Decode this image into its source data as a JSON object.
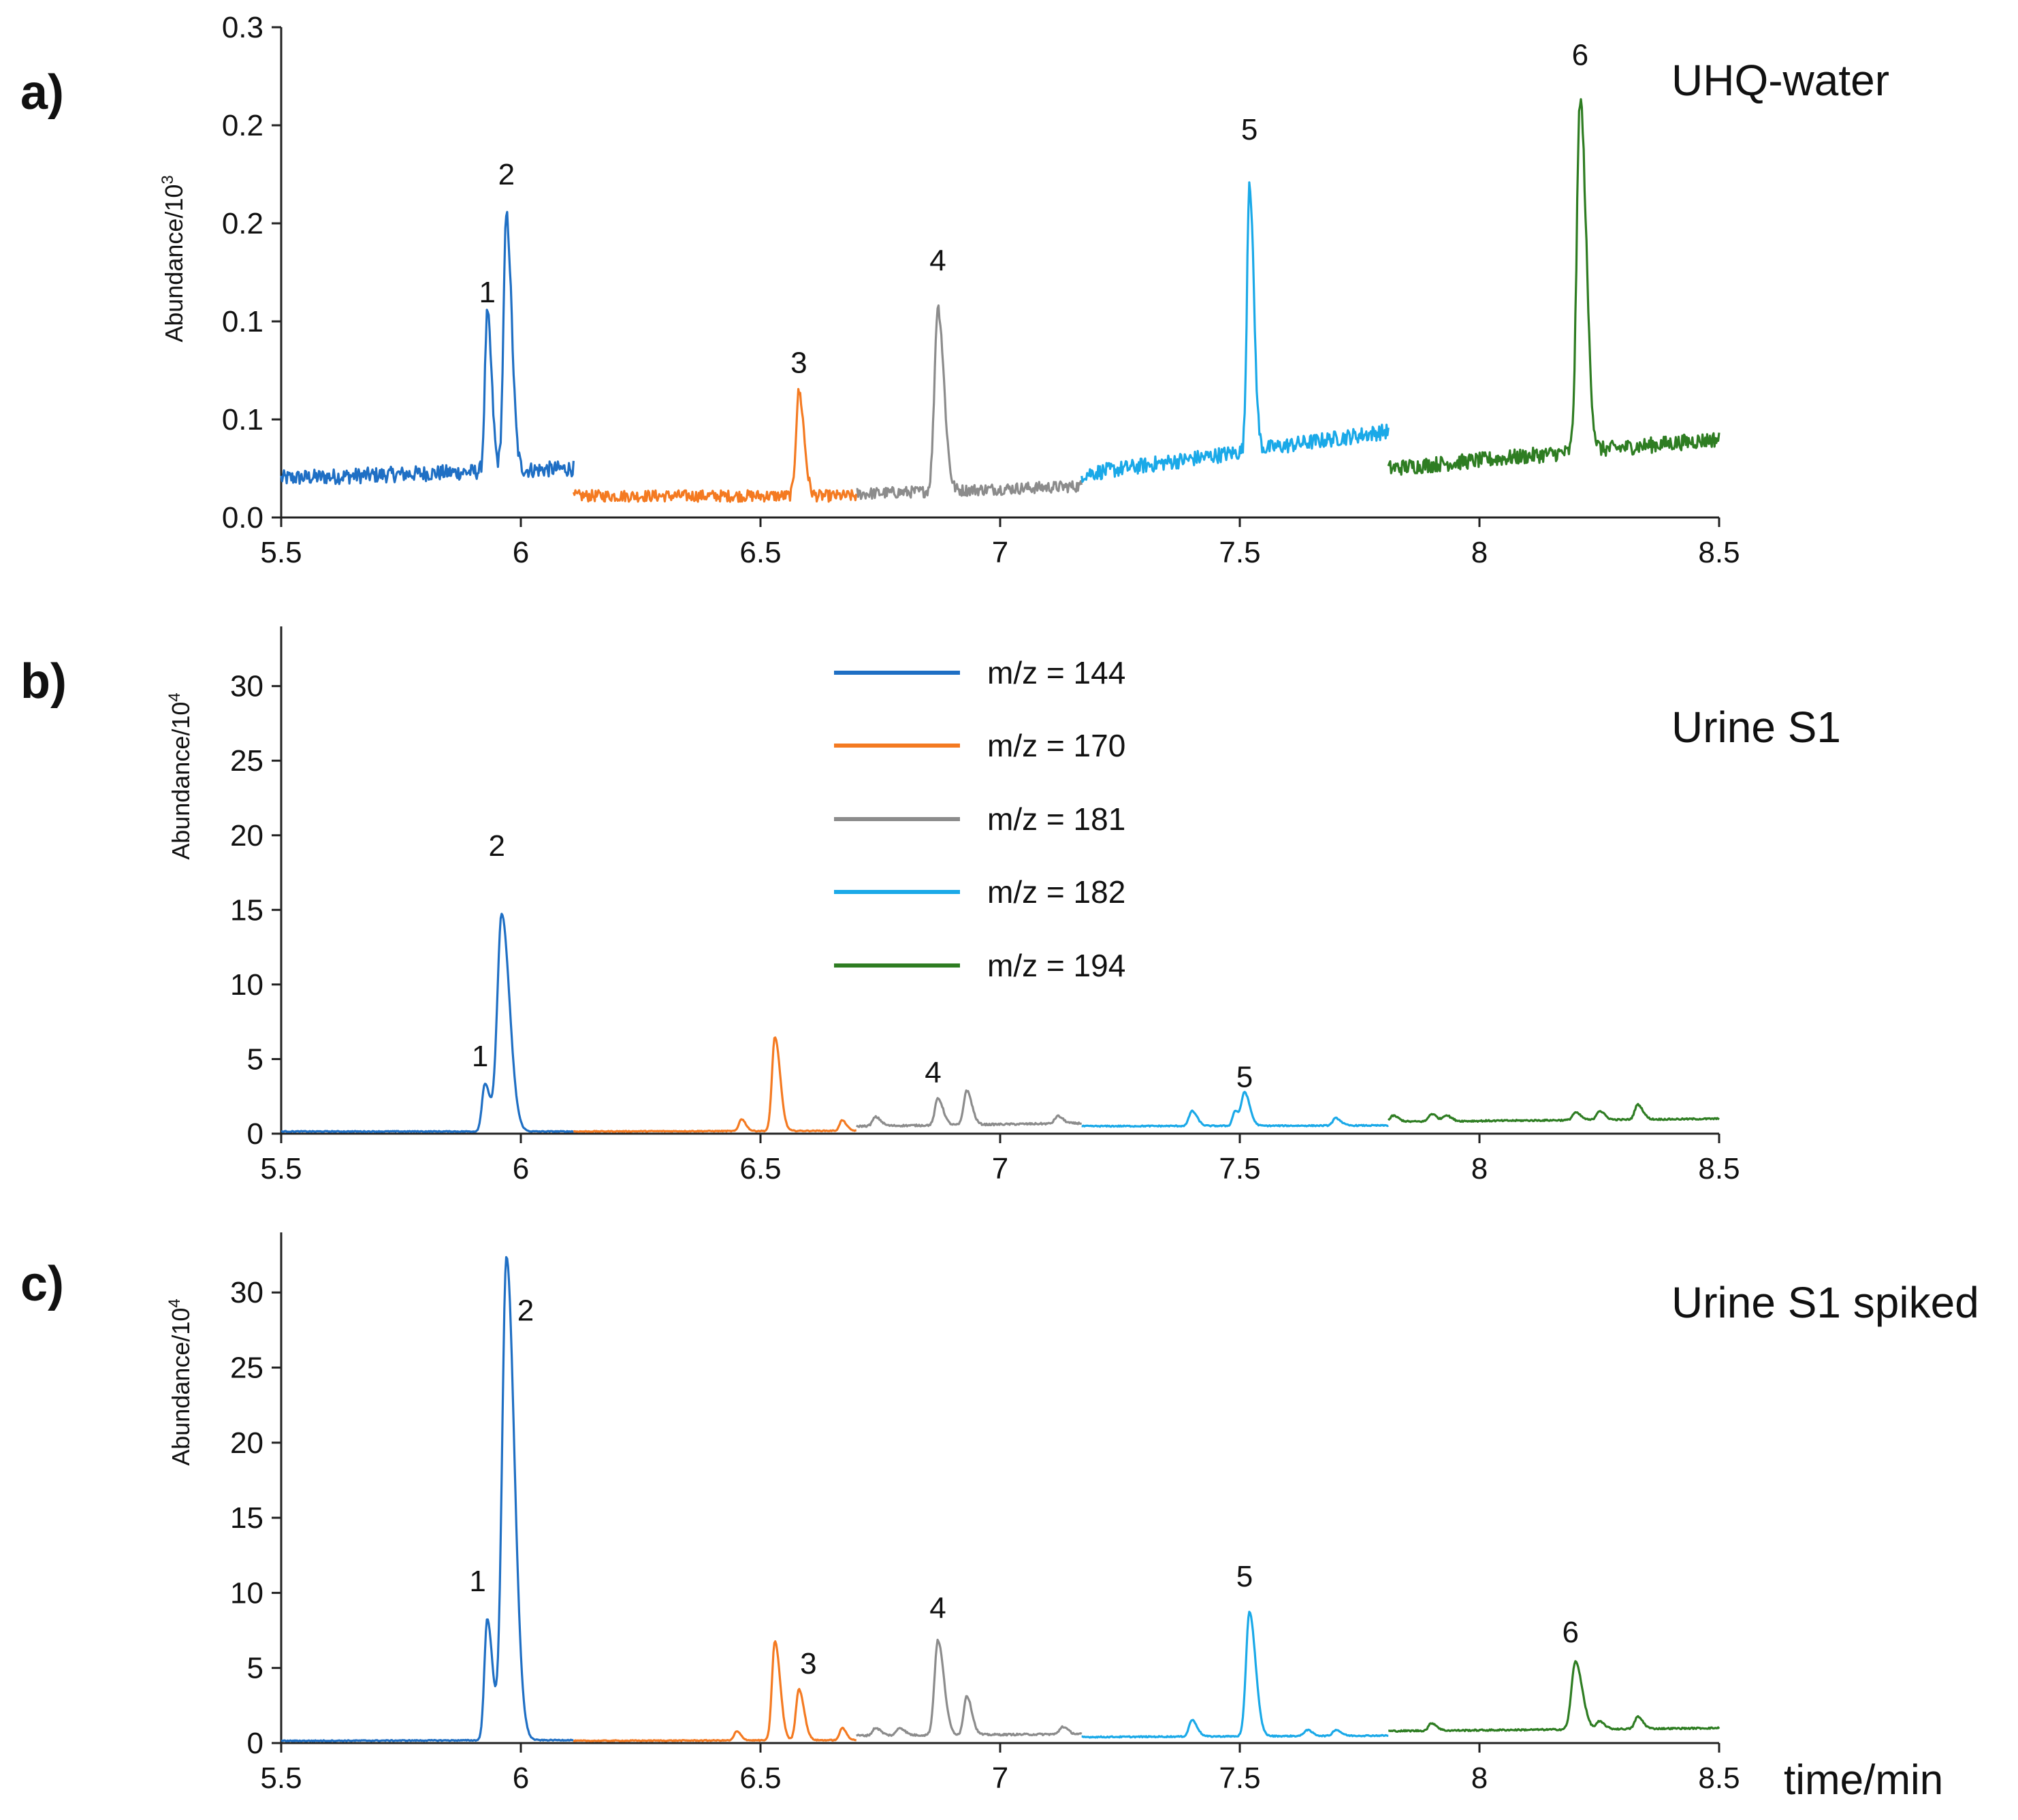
{
  "chart_data": [
    {
      "type": "line",
      "panel_label": "a)",
      "sample_label": "UHQ-water",
      "ylabel": "Abundance/10",
      "ylabel_exponent": "3",
      "xlim": [
        5.5,
        8.5
      ],
      "ylim": [
        0,
        0.25
      ],
      "x_ticks": [
        5.5,
        6,
        6.5,
        7,
        7.5,
        8,
        8.5
      ],
      "x_tick_labels": [
        "5.5",
        "6",
        "6.5",
        "7",
        "7.5",
        "8",
        "8.5"
      ],
      "y_ticks": [
        0,
        0.05,
        0.1,
        0.15,
        0.2,
        0.25
      ],
      "y_tick_labels": [
        "0.0",
        "0.1",
        "0.1",
        "0.2",
        "0.2",
        "0.3"
      ],
      "segments": [
        {
          "series": "m/z = 144",
          "x_start": 5.5,
          "x_end": 6.11,
          "baseline": 0.02,
          "noise": 0.004,
          "end_level": 0.025,
          "peaks": [
            {
              "x": 5.93,
              "h": 0.08,
              "w": 0.005
            },
            {
              "x": 5.97,
              "h": 0.13,
              "w": 0.006
            }
          ]
        },
        {
          "series": "m/z = 170",
          "x_start": 6.11,
          "x_end": 6.7,
          "baseline": 0.011,
          "noise": 0.003,
          "end_level": 0.011,
          "peaks": [
            {
              "x": 6.58,
              "h": 0.053,
              "w": 0.006
            }
          ]
        },
        {
          "series": "m/z = 181",
          "x_start": 6.7,
          "x_end": 7.17,
          "baseline": 0.012,
          "noise": 0.003,
          "end_level": 0.016,
          "peaks": [
            {
              "x": 6.87,
              "h": 0.094,
              "w": 0.007
            }
          ]
        },
        {
          "series": "m/z = 182",
          "x_start": 7.17,
          "x_end": 7.81,
          "baseline": 0.022,
          "noise": 0.004,
          "end_level": 0.044,
          "peaks": [
            {
              "x": 7.52,
              "h": 0.138,
              "w": 0.005
            }
          ]
        },
        {
          "series": "m/z = 194",
          "x_start": 7.81,
          "x_end": 8.5,
          "baseline": 0.025,
          "noise": 0.004,
          "end_level": 0.04,
          "peaks": [
            {
              "x": 8.21,
              "h": 0.18,
              "w": 0.007
            }
          ]
        }
      ],
      "peak_labels": [
        {
          "text": "1",
          "x": 5.93,
          "y": 0.115
        },
        {
          "text": "2",
          "x": 5.97,
          "y": 0.175
        },
        {
          "text": "3",
          "x": 6.58,
          "y": 0.079
        },
        {
          "text": "4",
          "x": 6.87,
          "y": 0.131
        },
        {
          "text": "5",
          "x": 7.52,
          "y": 0.198
        },
        {
          "text": "6",
          "x": 8.21,
          "y": 0.236
        }
      ]
    },
    {
      "type": "line",
      "panel_label": "b)",
      "sample_label": "Urine S1",
      "ylabel": "Abundance/10",
      "ylabel_exponent": "4",
      "xlim": [
        5.5,
        8.5
      ],
      "ylim": [
        0,
        34
      ],
      "x_ticks": [
        5.5,
        6,
        6.5,
        7,
        7.5,
        8,
        8.5
      ],
      "x_tick_labels": [
        "5.5",
        "6",
        "6.5",
        "7",
        "7.5",
        "8",
        "8.5"
      ],
      "y_ticks": [
        0,
        5,
        10,
        15,
        20,
        25,
        30
      ],
      "y_tick_labels": [
        "0",
        "5",
        "10",
        "15",
        "20",
        "25",
        "30"
      ],
      "segments": [
        {
          "series": "m/z = 144",
          "x_start": 5.5,
          "x_end": 6.11,
          "baseline": 0.15,
          "noise": 0.03,
          "end_level": 0.15,
          "peaks": [
            {
              "x": 5.925,
              "h": 3.2,
              "w": 0.006
            },
            {
              "x": 5.96,
              "h": 14.6,
              "w": 0.009
            }
          ]
        },
        {
          "series": "m/z = 170",
          "x_start": 6.11,
          "x_end": 6.7,
          "baseline": 0.15,
          "noise": 0.03,
          "end_level": 0.2,
          "peaks": [
            {
              "x": 6.46,
              "h": 0.8,
              "w": 0.005
            },
            {
              "x": 6.53,
              "h": 6.3,
              "w": 0.006
            },
            {
              "x": 6.67,
              "h": 0.7,
              "w": 0.005
            }
          ]
        },
        {
          "series": "m/z = 181",
          "x_start": 6.7,
          "x_end": 7.17,
          "baseline": 0.5,
          "noise": 0.06,
          "end_level": 0.7,
          "peaks": [
            {
              "x": 6.74,
              "h": 0.6,
              "w": 0.006
            },
            {
              "x": 6.87,
              "h": 1.8,
              "w": 0.006
            },
            {
              "x": 6.93,
              "h": 2.3,
              "w": 0.006
            },
            {
              "x": 7.12,
              "h": 0.5,
              "w": 0.006
            }
          ]
        },
        {
          "series": "m/z = 182",
          "x_start": 7.17,
          "x_end": 7.81,
          "baseline": 0.5,
          "noise": 0.04,
          "end_level": 0.55,
          "peaks": [
            {
              "x": 7.4,
              "h": 1.0,
              "w": 0.006
            },
            {
              "x": 7.49,
              "h": 1.0,
              "w": 0.005
            },
            {
              "x": 7.51,
              "h": 2.2,
              "w": 0.006
            },
            {
              "x": 7.7,
              "h": 0.5,
              "w": 0.006
            }
          ]
        },
        {
          "series": "m/z = 194",
          "x_start": 7.81,
          "x_end": 8.5,
          "baseline": 0.8,
          "noise": 0.05,
          "end_level": 1.0,
          "peaks": [
            {
              "x": 7.82,
              "h": 0.4,
              "w": 0.006
            },
            {
              "x": 7.9,
              "h": 0.5,
              "w": 0.006
            },
            {
              "x": 7.93,
              "h": 0.4,
              "w": 0.006
            },
            {
              "x": 8.2,
              "h": 0.5,
              "w": 0.006
            },
            {
              "x": 8.25,
              "h": 0.6,
              "w": 0.006
            },
            {
              "x": 8.33,
              "h": 1.0,
              "w": 0.006
            }
          ]
        }
      ],
      "peak_labels": [
        {
          "text": "1",
          "x": 5.915,
          "y": 5.2
        },
        {
          "text": "2",
          "x": 5.95,
          "y": 19.3
        },
        {
          "text": "4",
          "x": 6.86,
          "y": 4.1
        },
        {
          "text": "5",
          "x": 7.51,
          "y": 3.8
        }
      ]
    },
    {
      "type": "line",
      "panel_label": "c)",
      "sample_label": "Urine S1 spiked",
      "ylabel": "Abundance/10",
      "ylabel_exponent": "4",
      "xlabel": "time/min",
      "xlim": [
        5.5,
        8.5
      ],
      "ylim": [
        0,
        34
      ],
      "x_ticks": [
        5.5,
        6,
        6.5,
        7,
        7.5,
        8,
        8.5
      ],
      "x_tick_labels": [
        "5.5",
        "6",
        "6.5",
        "7",
        "7.5",
        "8",
        "8.5"
      ],
      "y_ticks": [
        0,
        5,
        10,
        15,
        20,
        25,
        30
      ],
      "y_tick_labels": [
        "0",
        "5",
        "10",
        "15",
        "20",
        "25",
        "30"
      ],
      "segments": [
        {
          "series": "m/z = 144",
          "x_start": 5.5,
          "x_end": 6.11,
          "baseline": 0.15,
          "noise": 0.03,
          "end_level": 0.2,
          "peaks": [
            {
              "x": 5.93,
              "h": 8.1,
              "w": 0.006
            },
            {
              "x": 5.97,
              "h": 32.2,
              "w": 0.009
            }
          ]
        },
        {
          "series": "m/z = 170",
          "x_start": 6.11,
          "x_end": 6.7,
          "baseline": 0.15,
          "noise": 0.03,
          "end_level": 0.2,
          "peaks": [
            {
              "x": 6.45,
              "h": 0.6,
              "w": 0.005
            },
            {
              "x": 6.53,
              "h": 6.6,
              "w": 0.006
            },
            {
              "x": 6.58,
              "h": 3.4,
              "w": 0.006
            },
            {
              "x": 6.67,
              "h": 0.8,
              "w": 0.005
            }
          ]
        },
        {
          "series": "m/z = 181",
          "x_start": 6.7,
          "x_end": 7.17,
          "baseline": 0.5,
          "noise": 0.06,
          "end_level": 0.6,
          "peaks": [
            {
              "x": 6.74,
              "h": 0.5,
              "w": 0.006
            },
            {
              "x": 6.79,
              "h": 0.5,
              "w": 0.006
            },
            {
              "x": 6.87,
              "h": 6.3,
              "w": 0.007
            },
            {
              "x": 6.93,
              "h": 2.6,
              "w": 0.006
            },
            {
              "x": 7.13,
              "h": 0.5,
              "w": 0.006
            }
          ]
        },
        {
          "series": "m/z = 182",
          "x_start": 7.17,
          "x_end": 7.81,
          "baseline": 0.4,
          "noise": 0.04,
          "end_level": 0.5,
          "peaks": [
            {
              "x": 7.4,
              "h": 1.1,
              "w": 0.006
            },
            {
              "x": 7.52,
              "h": 8.3,
              "w": 0.007
            },
            {
              "x": 7.64,
              "h": 0.4,
              "w": 0.006
            },
            {
              "x": 7.7,
              "h": 0.4,
              "w": 0.006
            }
          ]
        },
        {
          "series": "m/z = 194",
          "x_start": 7.81,
          "x_end": 8.5,
          "baseline": 0.8,
          "noise": 0.05,
          "end_level": 1.0,
          "peaks": [
            {
              "x": 7.9,
              "h": 0.5,
              "w": 0.006
            },
            {
              "x": 8.2,
              "h": 4.5,
              "w": 0.008
            },
            {
              "x": 8.25,
              "h": 0.5,
              "w": 0.006
            },
            {
              "x": 8.33,
              "h": 0.8,
              "w": 0.006
            }
          ]
        }
      ],
      "peak_labels": [
        {
          "text": "1",
          "x": 5.91,
          "y": 10.8
        },
        {
          "text": "2",
          "x": 6.01,
          "y": 28.8
        },
        {
          "text": "3",
          "x": 6.6,
          "y": 5.3
        },
        {
          "text": "4",
          "x": 6.87,
          "y": 9.0
        },
        {
          "text": "5",
          "x": 7.51,
          "y": 11.1
        },
        {
          "text": "6",
          "x": 8.19,
          "y": 7.4
        }
      ]
    }
  ],
  "legend": {
    "placement": "center of panel b",
    "items": [
      {
        "label": "m/z = 144",
        "color": "#1f6fc4"
      },
      {
        "label": "m/z = 170",
        "color": "#f47a21"
      },
      {
        "label": "m/z = 181",
        "color": "#8c8c8c"
      },
      {
        "label": "m/z = 182",
        "color": "#1aa9e8"
      },
      {
        "label": "m/z = 194",
        "color": "#2e7d22"
      }
    ]
  }
}
